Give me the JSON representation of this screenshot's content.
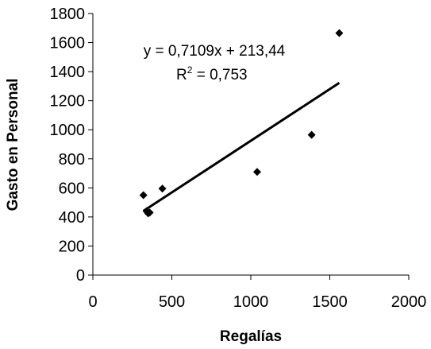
{
  "chart_data": {
    "type": "scatter",
    "title": "",
    "xlabel": "Regalías",
    "ylabel": "Gasto en Personal",
    "xlim": [
      0,
      2000
    ],
    "ylim": [
      0,
      1800
    ],
    "x_ticks": [
      0,
      500,
      1000,
      1500,
      2000
    ],
    "y_ticks": [
      0,
      200,
      400,
      600,
      800,
      1000,
      1200,
      1400,
      1600,
      1800
    ],
    "x_tick_labels": [
      "0",
      "500",
      "1000",
      "1500",
      "2000"
    ],
    "y_tick_labels": [
      "0",
      "200",
      "400",
      "600",
      "800",
      "1000",
      "1200",
      "1400",
      "1600",
      "1800"
    ],
    "grid": false,
    "legend": "none",
    "marker": "diamond",
    "marker_color": "#000000",
    "series": [
      {
        "x": [
          320,
          340,
          350,
          360,
          440,
          1040,
          1385,
          1560
        ],
        "y": [
          550,
          440,
          425,
          430,
          595,
          710,
          965,
          1665
        ]
      }
    ],
    "trendline": {
      "slope": 0.7109,
      "intercept": 213.44,
      "x_range": [
        320,
        1560
      ],
      "color": "#000000"
    },
    "annotations": {
      "equation": "y = 0,7109x + 213,44",
      "r2_prefix": "R",
      "r2_sup": "2",
      "r2_suffix": " = 0,753"
    }
  }
}
